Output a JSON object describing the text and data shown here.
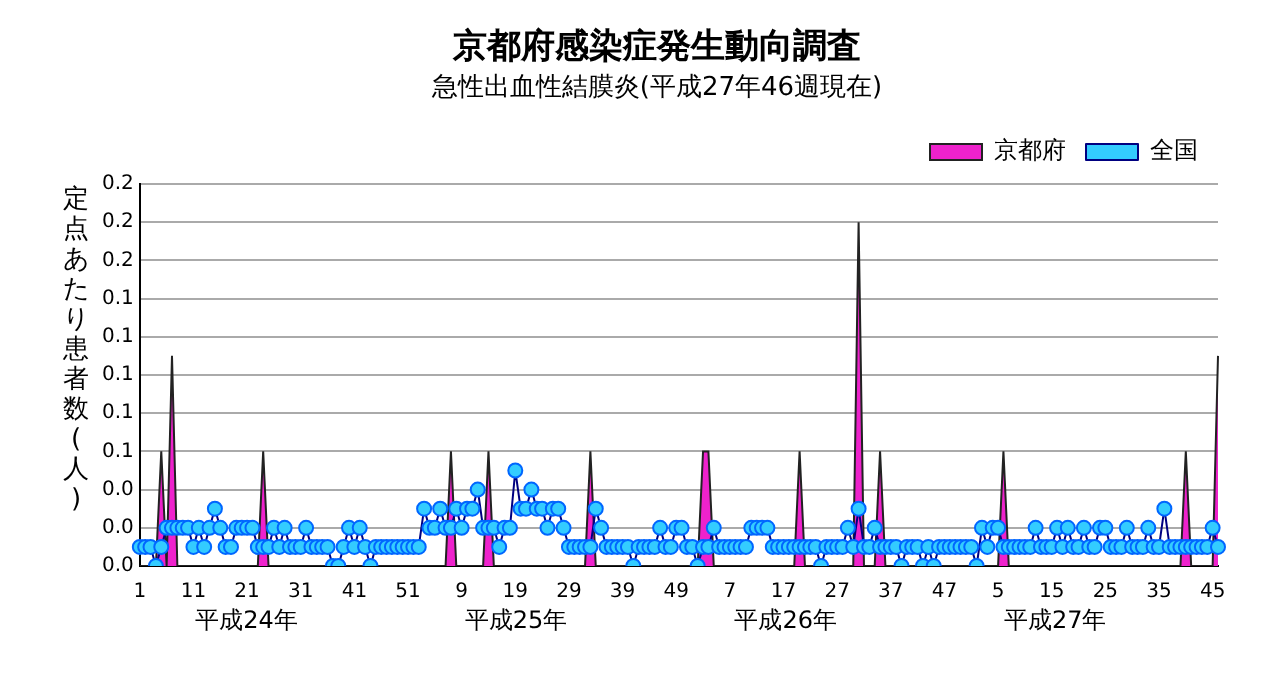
{
  "chart_data": {
    "type": "line",
    "title": "京都府感染症発生動向調査",
    "subtitle": "急性出血性結膜炎(平成27年46週現在)",
    "ylabel": "定点あたり患者数(人)",
    "annotations": [
      "平成24年",
      "平成25年",
      "平成26年",
      "平成27年"
    ],
    "categories": [
      "1",
      null,
      null,
      null,
      null,
      null,
      null,
      null,
      null,
      null,
      "11",
      null,
      null,
      null,
      null,
      null,
      null,
      null,
      null,
      null,
      "21",
      null,
      null,
      null,
      null,
      null,
      null,
      null,
      null,
      null,
      "31",
      null,
      null,
      null,
      null,
      null,
      null,
      null,
      null,
      null,
      "41",
      null,
      null,
      null,
      null,
      null,
      null,
      null,
      null,
      null,
      "51",
      null,
      null,
      null,
      null,
      null,
      null,
      null,
      null,
      null,
      "9",
      null,
      null,
      null,
      null,
      null,
      null,
      null,
      null,
      null,
      "19",
      null,
      null,
      null,
      null,
      null,
      null,
      null,
      null,
      null,
      "29",
      null,
      null,
      null,
      null,
      null,
      null,
      null,
      null,
      null,
      "39",
      null,
      null,
      null,
      null,
      null,
      null,
      null,
      null,
      null,
      "49",
      null,
      null,
      null,
      null,
      null,
      null,
      null,
      null,
      null,
      "7",
      null,
      null,
      null,
      null,
      null,
      null,
      null,
      null,
      null,
      "17",
      null,
      null,
      null,
      null,
      null,
      null,
      null,
      null,
      null,
      "27",
      null,
      null,
      null,
      null,
      null,
      null,
      null,
      null,
      null,
      "37",
      null,
      null,
      null,
      null,
      null,
      null,
      null,
      null,
      null,
      "47",
      null,
      null,
      null,
      null,
      null,
      null,
      null,
      null,
      null,
      "5",
      null,
      null,
      null,
      null,
      null,
      null,
      null,
      null,
      null,
      "15",
      null,
      null,
      null,
      null,
      null,
      null,
      null,
      null,
      null,
      "25",
      null,
      null,
      null,
      null,
      null,
      null,
      null,
      null,
      null,
      "35",
      null,
      null,
      null,
      null,
      null,
      null,
      null,
      null,
      null,
      "45",
      null
    ],
    "series": [
      {
        "name": "京都府",
        "type": "area",
        "color": "#ee22cc",
        "marker": "none",
        "values": [
          0,
          0,
          0,
          0,
          0.06,
          0,
          0.11,
          0,
          0,
          0,
          0,
          0,
          0,
          0,
          0,
          0,
          0,
          0,
          0,
          0,
          0,
          0,
          0,
          0.06,
          0,
          0,
          0,
          0,
          0,
          0,
          0,
          0,
          0,
          0,
          0,
          0,
          0,
          0,
          0,
          0,
          0,
          0,
          0,
          0,
          0,
          0,
          0,
          0,
          0,
          0,
          0,
          0,
          0,
          0,
          0,
          0,
          0,
          0,
          0.06,
          0,
          0,
          0,
          0,
          0,
          0,
          0.06,
          0,
          0,
          0,
          0,
          0,
          0,
          0,
          0,
          0,
          0,
          0,
          0,
          0,
          0,
          0,
          0,
          0,
          0,
          0.06,
          0,
          0,
          0,
          0,
          0,
          0,
          0,
          0,
          0,
          0,
          0,
          0,
          0,
          0,
          0,
          0,
          0,
          0,
          0,
          0,
          0.06,
          0.06,
          0,
          0,
          0,
          0,
          0,
          0,
          0,
          0,
          0,
          0,
          0,
          0,
          0,
          0,
          0,
          0,
          0.06,
          0,
          0,
          0,
          0,
          0,
          0,
          0,
          0,
          0,
          0,
          0.18,
          0,
          0,
          0,
          0.06,
          0,
          0,
          0,
          0,
          0,
          0,
          0,
          0,
          0,
          0,
          0,
          0,
          0,
          0,
          0,
          0,
          0,
          0,
          0,
          0,
          0,
          0,
          0.06,
          0,
          0,
          0,
          0,
          0,
          0,
          0,
          0,
          0,
          0,
          0,
          0,
          0,
          0,
          0,
          0,
          0,
          0,
          0,
          0,
          0,
          0,
          0,
          0,
          0,
          0,
          0,
          0,
          0,
          0,
          0,
          0,
          0,
          0.06,
          0,
          0,
          0,
          0,
          0,
          0.11
        ]
      },
      {
        "name": "全国",
        "type": "line",
        "color": "#33ccff",
        "values": [
          0.01,
          0.01,
          0.01,
          0,
          0.01,
          0.02,
          0.02,
          0.02,
          0.02,
          0.02,
          0.01,
          0.02,
          0.01,
          0.02,
          0.03,
          0.02,
          0.01,
          0.01,
          0.02,
          0.02,
          0.02,
          0.02,
          0.01,
          0.01,
          0.01,
          0.02,
          0.01,
          0.02,
          0.01,
          0.01,
          0.01,
          0.02,
          0.01,
          0.01,
          0.01,
          0.01,
          0,
          0,
          0.01,
          0.02,
          0.01,
          0.02,
          0.01,
          0,
          0.01,
          0.01,
          0.01,
          0.01,
          0.01,
          0.01,
          0.01,
          0.01,
          0.01,
          0.03,
          0.02,
          0.02,
          0.03,
          0.02,
          0.02,
          0.03,
          0.02,
          0.03,
          0.03,
          0.04,
          0.02,
          0.02,
          0.02,
          0.01,
          0.02,
          0.02,
          0.05,
          0.03,
          0.03,
          0.04,
          0.03,
          0.03,
          0.02,
          0.03,
          0.03,
          0.02,
          0.01,
          0.01,
          0.01,
          0.01,
          0.01,
          0.03,
          0.02,
          0.01,
          0.01,
          0.01,
          0.01,
          0.01,
          0,
          0.01,
          0.01,
          0.01,
          0.01,
          0.02,
          0.01,
          0.01,
          0.02,
          0.02,
          0.01,
          0.01,
          0,
          0.01,
          0.01,
          0.02,
          0.01,
          0.01,
          0.01,
          0.01,
          0.01,
          0.01,
          0.02,
          0.02,
          0.02,
          0.02,
          0.01,
          0.01,
          0.01,
          0.01,
          0.01,
          0.01,
          0.01,
          0.01,
          0.01,
          0,
          0.01,
          0.01,
          0.01,
          0.01,
          0.02,
          0.01,
          0.03,
          0.01,
          0.01,
          0.02,
          0.01,
          0.01,
          0.01,
          0.01,
          0,
          0.01,
          0.01,
          0.01,
          0,
          0.01,
          0,
          0.01,
          0.01,
          0.01,
          0.01,
          0.01,
          0.01,
          0.01,
          0,
          0.02,
          0.01,
          0.02,
          0.02,
          0.01,
          0.01,
          0.01,
          0.01,
          0.01,
          0.01,
          0.02,
          0.01,
          0.01,
          0.01,
          0.02,
          0.01,
          0.02,
          0.01,
          0.01,
          0.02,
          0.01,
          0.01,
          0.02,
          0.02,
          0.01,
          0.01,
          0.01,
          0.02,
          0.01,
          0.01,
          0.01,
          0.02,
          0.01,
          0.01,
          0.03,
          0.01,
          0.01,
          0.01,
          0.01,
          0.01,
          0.01,
          0.01,
          0.01,
          0.02,
          0.01
        ]
      }
    ],
    "ylim": [
      0,
      0.2
    ],
    "yticks": [
      {
        "value": 0,
        "label": "0.0"
      },
      {
        "value": 0.02,
        "label": "0.0"
      },
      {
        "value": 0.04,
        "label": "0.0"
      },
      {
        "value": 0.06,
        "label": "0.1"
      },
      {
        "value": 0.08,
        "label": "0.1"
      },
      {
        "value": 0.1,
        "label": "0.1"
      },
      {
        "value": 0.12,
        "label": "0.1"
      },
      {
        "value": 0.14,
        "label": "0.1"
      },
      {
        "value": 0.16,
        "label": "0.2"
      },
      {
        "value": 0.18,
        "label": "0.2"
      },
      {
        "value": 0.2,
        "label": "0.2"
      }
    ],
    "grid": "y",
    "legend": "top right",
    "marker": "circle",
    "line_style": "solid"
  }
}
